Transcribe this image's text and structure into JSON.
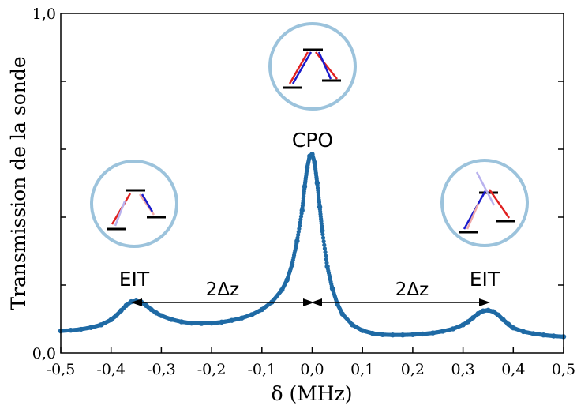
{
  "chart_data": {
    "type": "scatter",
    "title": "",
    "xlabel": "δ (MHz)",
    "ylabel": "Transmission de la sonde",
    "xlim": [
      -0.5,
      0.5
    ],
    "ylim": [
      0.0,
      1.0
    ],
    "x_ticks": [
      "-0,5",
      "-0,4",
      "-0,3",
      "-0,2",
      "-0,1",
      "0,0",
      "0,1",
      "0,2",
      "0,3",
      "0,4",
      "0,5"
    ],
    "y_ticks": [
      "0,0",
      "1,0"
    ],
    "series_color": "#1f6aa5",
    "series": [
      {
        "x": [
          -0.5,
          -0.48,
          -0.46,
          -0.44,
          -0.42,
          -0.4,
          -0.39,
          -0.38,
          -0.37,
          -0.36,
          -0.35,
          -0.34,
          -0.33,
          -0.32,
          -0.31,
          -0.3,
          -0.28,
          -0.26,
          -0.24,
          -0.22,
          -0.2,
          -0.18,
          -0.16,
          -0.14,
          -0.12,
          -0.1,
          -0.08,
          -0.06,
          -0.05,
          -0.04,
          -0.03,
          -0.02,
          -0.015,
          -0.01,
          -0.005,
          0.0,
          0.005,
          0.01,
          0.015,
          0.02,
          0.03,
          0.04,
          0.05,
          0.06,
          0.08,
          0.1,
          0.12,
          0.14,
          0.16,
          0.18,
          0.2,
          0.22,
          0.24,
          0.26,
          0.28,
          0.3,
          0.31,
          0.32,
          0.33,
          0.34,
          0.35,
          0.36,
          0.37,
          0.38,
          0.39,
          0.4,
          0.42,
          0.44,
          0.46,
          0.48,
          0.5
        ],
        "y": [
          0.065,
          0.067,
          0.07,
          0.075,
          0.083,
          0.098,
          0.11,
          0.125,
          0.14,
          0.151,
          0.153,
          0.15,
          0.14,
          0.128,
          0.118,
          0.11,
          0.099,
          0.092,
          0.088,
          0.087,
          0.088,
          0.091,
          0.096,
          0.103,
          0.113,
          0.128,
          0.15,
          0.186,
          0.215,
          0.26,
          0.33,
          0.42,
          0.49,
          0.545,
          0.58,
          0.585,
          0.56,
          0.5,
          0.43,
          0.36,
          0.255,
          0.19,
          0.145,
          0.115,
          0.083,
          0.066,
          0.058,
          0.054,
          0.053,
          0.053,
          0.054,
          0.056,
          0.059,
          0.064,
          0.071,
          0.083,
          0.092,
          0.104,
          0.116,
          0.124,
          0.126,
          0.122,
          0.112,
          0.098,
          0.085,
          0.074,
          0.063,
          0.057,
          0.053,
          0.05,
          0.048
        ]
      }
    ],
    "annotations": {
      "cpo": "CPO",
      "eit_left": "EIT",
      "eit_right": "EIT",
      "delta_left": "2Δz",
      "delta_right": "2Δz"
    },
    "grid": false
  }
}
